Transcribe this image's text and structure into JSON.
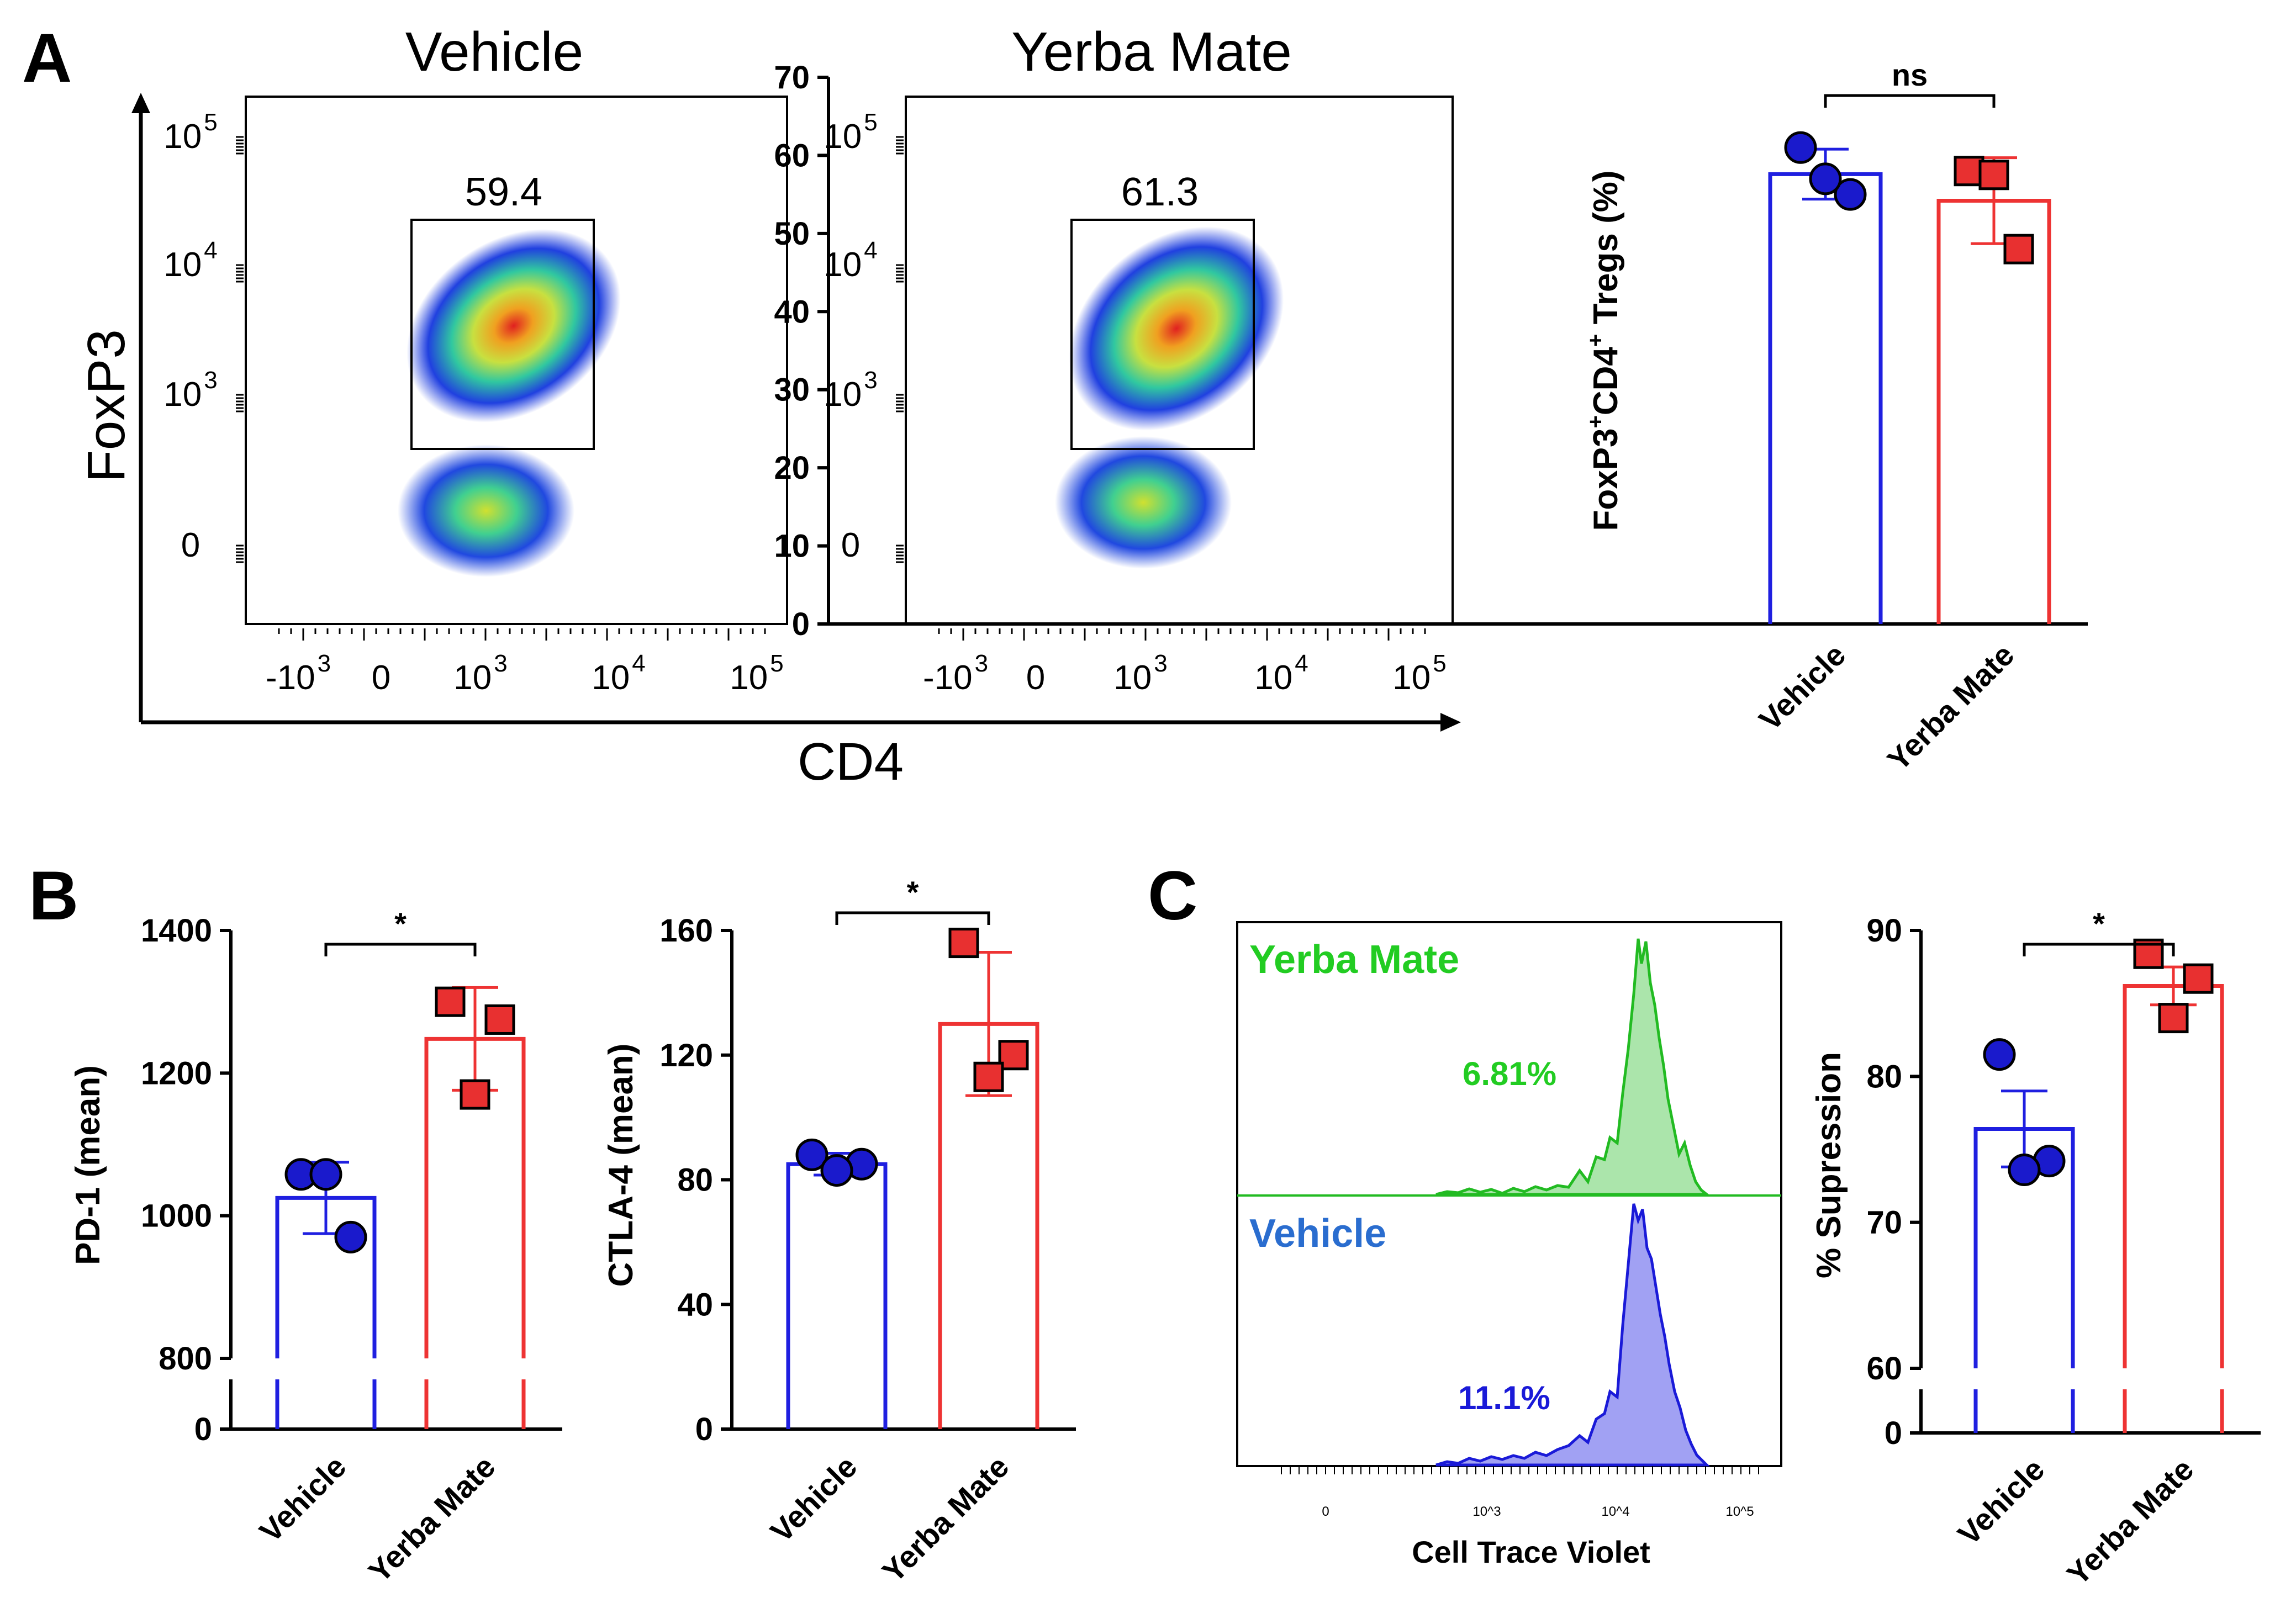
{
  "panel_labels": {
    "a": "A",
    "b": "B",
    "c": "C"
  },
  "colors": {
    "vehicle": "#1f1fe0",
    "yerba": "#ee3333",
    "yerba_hist": "#22bb22",
    "vehicle_hist": "#1a1ad8",
    "vehicle_label": "#2a6dcf"
  },
  "flow": {
    "titles": [
      "Vehicle",
      "Yerba Mate"
    ],
    "x_label": "CD4",
    "y_label": "FoxP3",
    "gate_values": [
      "59.4",
      "61.3"
    ],
    "y_ticks": [
      {
        "base": "10",
        "exp": "5"
      },
      {
        "base": "10",
        "exp": "4"
      },
      {
        "base": "10",
        "exp": "3"
      },
      {
        "base": "0",
        "exp": ""
      }
    ],
    "x_ticks": [
      {
        "base": "-10",
        "exp": "3"
      },
      {
        "base": "0",
        "exp": ""
      },
      {
        "base": "10",
        "exp": "3"
      },
      {
        "base": "10",
        "exp": "4"
      },
      {
        "base": "10",
        "exp": "5"
      }
    ]
  },
  "chart_data": [
    {
      "id": "tregs",
      "type": "bar",
      "title": "",
      "ylabel": "FoxP3+CD4+ Tregs (%)",
      "ylabel_parts": {
        "a": "FoxP3",
        "b": "+",
        "c": "CD4",
        "d": "+",
        "e": " Tregs (%)"
      },
      "categories": [
        "Vehicle",
        "Yerba Mate"
      ],
      "values": [
        57.6,
        54.2
      ],
      "errors": [
        3.2,
        5.5
      ],
      "points": [
        [
          61,
          55,
          57
        ],
        [
          58,
          48,
          57.5
        ]
      ],
      "ylim": [
        0,
        70
      ],
      "yticks": [
        "0",
        "10",
        "20",
        "30",
        "40",
        "50",
        "60",
        "70"
      ],
      "significance": "ns",
      "axis_break": false
    },
    {
      "id": "pd1",
      "type": "bar",
      "title": "",
      "ylabel": "PD-1 (mean)",
      "categories": [
        "Vehicle",
        "Yerba Mate"
      ],
      "values": [
        1025,
        1248
      ],
      "errors": [
        50,
        72
      ],
      "points": [
        [
          1058,
          970,
          1058
        ],
        [
          1300,
          1275,
          1170
        ]
      ],
      "ylim": [
        800,
        1400
      ],
      "yticks": [
        "800",
        "1000",
        "1200",
        "1400"
      ],
      "break_tick": "0",
      "significance": "*",
      "axis_break": true
    },
    {
      "id": "ctla4",
      "type": "bar",
      "title": "",
      "ylabel": "CTLA-4 (mean)",
      "categories": [
        "Vehicle",
        "Yerba Mate"
      ],
      "values": [
        85,
        130
      ],
      "errors": [
        3.5,
        23
      ],
      "points": [
        [
          88,
          85,
          83
        ],
        [
          156,
          120,
          113
        ]
      ],
      "ylim": [
        0,
        160
      ],
      "yticks": [
        "0",
        "40",
        "80",
        "120",
        "160"
      ],
      "significance": "*",
      "axis_break": false
    },
    {
      "id": "cell_trace_violet",
      "type": "histogram",
      "xlabel": "Cell Trace Violet",
      "x_ticks": [
        "0",
        "10^3",
        "10^4",
        "10^5"
      ],
      "series": [
        {
          "name": "Yerba Mate",
          "percent_label": "6.81%"
        },
        {
          "name": "Vehicle",
          "percent_label": "11.1%"
        }
      ]
    },
    {
      "id": "suppression",
      "type": "bar",
      "title": "",
      "ylabel": "% Supression",
      "categories": [
        "Vehicle",
        "Yerba Mate"
      ],
      "values": [
        76.4,
        86.2
      ],
      "errors": [
        2.6,
        1.3
      ],
      "points": [
        [
          81.5,
          74.2,
          73.6
        ],
        [
          88.4,
          86.7,
          84.0
        ]
      ],
      "ylim": [
        60,
        90
      ],
      "yticks": [
        "60",
        "70",
        "80",
        "90"
      ],
      "break_tick": "0",
      "significance": "*",
      "axis_break": true
    }
  ]
}
